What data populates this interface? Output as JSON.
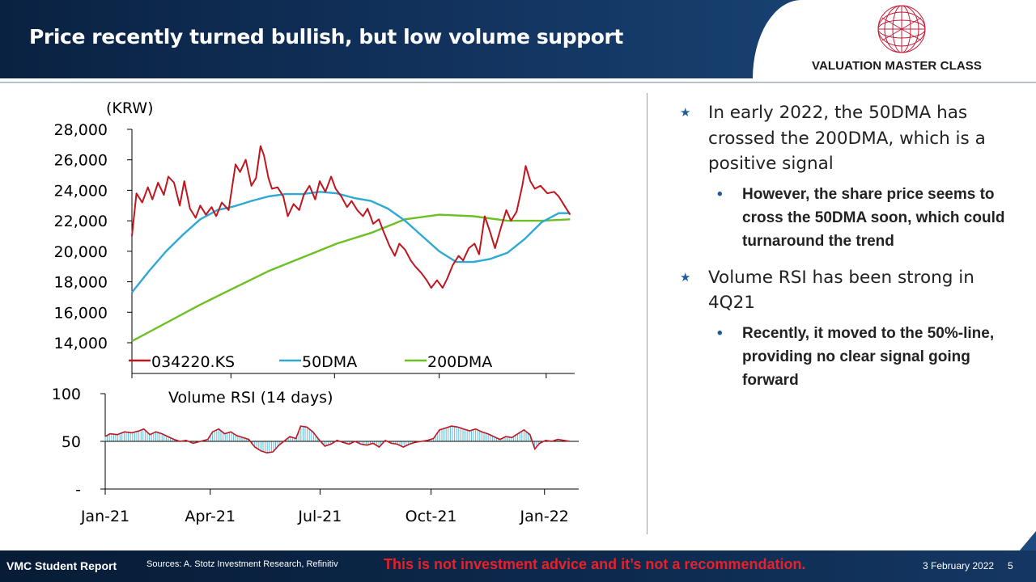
{
  "header": {
    "title": "Price recently turned bullish, but low volume support"
  },
  "logo": {
    "text": "VALUATION MASTER CLASS"
  },
  "chart_data": [
    {
      "type": "line",
      "ylabel": "(KRW)",
      "ylim": [
        14000,
        28000
      ],
      "yticks": [
        "28,000",
        "26,000",
        "24,000",
        "22,000",
        "20,000",
        "18,000",
        "16,000",
        "14,000"
      ],
      "x_range": [
        "2021-01-04",
        "2022-01-28"
      ],
      "legend_position": "bottom",
      "grid": false,
      "series": [
        {
          "name": "034220.KS",
          "color": "#c0161f",
          "points": [
            [
              "2021-01-04",
              21000
            ],
            [
              "2021-01-08",
              23800
            ],
            [
              "2021-01-13",
              23200
            ],
            [
              "2021-01-18",
              24200
            ],
            [
              "2021-01-22",
              23400
            ],
            [
              "2021-01-27",
              24500
            ],
            [
              "2021-02-01",
              23700
            ],
            [
              "2021-02-05",
              24900
            ],
            [
              "2021-02-10",
              24500
            ],
            [
              "2021-02-15",
              23000
            ],
            [
              "2021-02-19",
              24600
            ],
            [
              "2021-02-24",
              22800
            ],
            [
              "2021-03-01",
              22200
            ],
            [
              "2021-03-05",
              23000
            ],
            [
              "2021-03-10",
              22400
            ],
            [
              "2021-03-15",
              22900
            ],
            [
              "2021-03-19",
              22300
            ],
            [
              "2021-03-24",
              23200
            ],
            [
              "2021-03-30",
              22700
            ],
            [
              "2021-04-05",
              25700
            ],
            [
              "2021-04-09",
              25200
            ],
            [
              "2021-04-14",
              26000
            ],
            [
              "2021-04-19",
              24300
            ],
            [
              "2021-04-23",
              24800
            ],
            [
              "2021-04-27",
              26900
            ],
            [
              "2021-04-30",
              26300
            ],
            [
              "2021-05-04",
              24800
            ],
            [
              "2021-05-07",
              24100
            ],
            [
              "2021-05-12",
              24200
            ],
            [
              "2021-05-17",
              23600
            ],
            [
              "2021-05-21",
              22300
            ],
            [
              "2021-05-26",
              23100
            ],
            [
              "2021-05-31",
              22700
            ],
            [
              "2021-06-04",
              23700
            ],
            [
              "2021-06-09",
              24300
            ],
            [
              "2021-06-14",
              23400
            ],
            [
              "2021-06-18",
              24600
            ],
            [
              "2021-06-23",
              23900
            ],
            [
              "2021-06-28",
              24900
            ],
            [
              "2021-07-02",
              24100
            ],
            [
              "2021-07-07",
              23600
            ],
            [
              "2021-07-12",
              22900
            ],
            [
              "2021-07-16",
              23300
            ],
            [
              "2021-07-21",
              22700
            ],
            [
              "2021-07-26",
              22300
            ],
            [
              "2021-07-30",
              22800
            ],
            [
              "2021-08-04",
              21800
            ],
            [
              "2021-08-09",
              22100
            ],
            [
              "2021-08-13",
              21300
            ],
            [
              "2021-08-18",
              20400
            ],
            [
              "2021-08-23",
              19700
            ],
            [
              "2021-08-27",
              20500
            ],
            [
              "2021-09-01",
              20100
            ],
            [
              "2021-09-06",
              19400
            ],
            [
              "2021-09-10",
              19000
            ],
            [
              "2021-09-15",
              18600
            ],
            [
              "2021-09-20",
              18100
            ],
            [
              "2021-09-24",
              17600
            ],
            [
              "2021-09-29",
              18100
            ],
            [
              "2021-10-04",
              17600
            ],
            [
              "2021-10-08",
              18200
            ],
            [
              "2021-10-13",
              19100
            ],
            [
              "2021-10-18",
              19700
            ],
            [
              "2021-10-22",
              19400
            ],
            [
              "2021-10-27",
              20200
            ],
            [
              "2021-11-01",
              20500
            ],
            [
              "2021-11-05",
              19800
            ],
            [
              "2021-11-10",
              22300
            ],
            [
              "2021-11-15",
              21200
            ],
            [
              "2021-11-19",
              20200
            ],
            [
              "2021-11-24",
              21500
            ],
            [
              "2021-11-29",
              22700
            ],
            [
              "2021-12-03",
              22000
            ],
            [
              "2021-12-08",
              22600
            ],
            [
              "2021-12-13",
              24300
            ],
            [
              "2021-12-16",
              25600
            ],
            [
              "2021-12-20",
              24600
            ],
            [
              "2021-12-24",
              24100
            ],
            [
              "2021-12-29",
              24300
            ],
            [
              "2022-01-04",
              23800
            ],
            [
              "2022-01-10",
              23900
            ],
            [
              "2022-01-14",
              23600
            ],
            [
              "2022-01-19",
              23000
            ],
            [
              "2022-01-24",
              22400
            ]
          ]
        },
        {
          "name": "50DMA",
          "color": "#2ea8d5",
          "points": [
            [
              "2021-01-04",
              17300
            ],
            [
              "2021-01-19",
              18700
            ],
            [
              "2021-02-03",
              20000
            ],
            [
              "2021-02-18",
              21100
            ],
            [
              "2021-03-05",
              22100
            ],
            [
              "2021-03-20",
              22700
            ],
            [
              "2021-04-04",
              22950
            ],
            [
              "2021-04-19",
              23300
            ],
            [
              "2021-05-04",
              23600
            ],
            [
              "2021-05-19",
              23750
            ],
            [
              "2021-06-03",
              23750
            ],
            [
              "2021-06-18",
              23900
            ],
            [
              "2021-07-03",
              23800
            ],
            [
              "2021-07-18",
              23500
            ],
            [
              "2021-08-02",
              23300
            ],
            [
              "2021-08-17",
              22800
            ],
            [
              "2021-09-01",
              22000
            ],
            [
              "2021-09-16",
              21000
            ],
            [
              "2021-10-01",
              20000
            ],
            [
              "2021-10-16",
              19300
            ],
            [
              "2021-10-31",
              19300
            ],
            [
              "2021-11-15",
              19500
            ],
            [
              "2021-11-30",
              19900
            ],
            [
              "2021-12-15",
              20800
            ],
            [
              "2021-12-30",
              21900
            ],
            [
              "2022-01-14",
              22500
            ],
            [
              "2022-01-24",
              22500
            ]
          ]
        },
        {
          "name": "200DMA",
          "color": "#6cbf25",
          "points": [
            [
              "2021-01-04",
              14100
            ],
            [
              "2021-02-03",
              15300
            ],
            [
              "2021-03-05",
              16500
            ],
            [
              "2021-04-04",
              17600
            ],
            [
              "2021-05-04",
              18700
            ],
            [
              "2021-06-03",
              19600
            ],
            [
              "2021-07-03",
              20500
            ],
            [
              "2021-08-02",
              21200
            ],
            [
              "2021-09-01",
              22100
            ],
            [
              "2021-10-01",
              22400
            ],
            [
              "2021-10-31",
              22300
            ],
            [
              "2021-11-30",
              22000
            ],
            [
              "2021-12-30",
              22000
            ],
            [
              "2022-01-24",
              22100
            ]
          ]
        }
      ]
    },
    {
      "type": "area",
      "title": "Volume RSI (14 days)",
      "ylim": [
        0,
        100
      ],
      "yticks": [
        "100",
        "50",
        "-"
      ],
      "baseline": 50,
      "xticks": [
        "Jan-21",
        "Apr-21",
        "Jul-21",
        "Oct-21",
        "Jan-22"
      ],
      "xtick_dates": [
        "2021-01-04",
        "2021-04-01",
        "2021-07-01",
        "2021-10-01",
        "2022-01-03"
      ],
      "x_range": [
        "2021-01-04",
        "2022-01-28"
      ],
      "colors": {
        "line": "#c0161f",
        "fill": "#5bbde0"
      },
      "points": [
        [
          "2021-01-04",
          55
        ],
        [
          "2021-01-08",
          58
        ],
        [
          "2021-01-14",
          57
        ],
        [
          "2021-01-20",
          60
        ],
        [
          "2021-01-26",
          59
        ],
        [
          "2021-02-01",
          61
        ],
        [
          "2021-02-05",
          63
        ],
        [
          "2021-02-10",
          57
        ],
        [
          "2021-02-15",
          60
        ],
        [
          "2021-02-20",
          58
        ],
        [
          "2021-02-25",
          55
        ],
        [
          "2021-03-02",
          52
        ],
        [
          "2021-03-07",
          50
        ],
        [
          "2021-03-12",
          51
        ],
        [
          "2021-03-18",
          48
        ],
        [
          "2021-03-24",
          50
        ],
        [
          "2021-03-30",
          52
        ],
        [
          "2021-04-03",
          60
        ],
        [
          "2021-04-08",
          63
        ],
        [
          "2021-04-13",
          58
        ],
        [
          "2021-04-18",
          60
        ],
        [
          "2021-04-23",
          56
        ],
        [
          "2021-04-28",
          54
        ],
        [
          "2021-05-03",
          52
        ],
        [
          "2021-05-08",
          44
        ],
        [
          "2021-05-13",
          40
        ],
        [
          "2021-05-18",
          38
        ],
        [
          "2021-05-23",
          39
        ],
        [
          "2021-05-28",
          46
        ],
        [
          "2021-06-02",
          51
        ],
        [
          "2021-06-06",
          55
        ],
        [
          "2021-06-11",
          53
        ],
        [
          "2021-06-15",
          66
        ],
        [
          "2021-06-20",
          65
        ],
        [
          "2021-06-25",
          60
        ],
        [
          "2021-06-30",
          52
        ],
        [
          "2021-07-05",
          45
        ],
        [
          "2021-07-10",
          47
        ],
        [
          "2021-07-15",
          51
        ],
        [
          "2021-07-20",
          49
        ],
        [
          "2021-07-25",
          47
        ],
        [
          "2021-07-30",
          50
        ],
        [
          "2021-08-04",
          47
        ],
        [
          "2021-08-09",
          46
        ],
        [
          "2021-08-14",
          48
        ],
        [
          "2021-08-19",
          44
        ],
        [
          "2021-08-24",
          51
        ],
        [
          "2021-08-29",
          48
        ],
        [
          "2021-09-03",
          47
        ],
        [
          "2021-09-08",
          44
        ],
        [
          "2021-09-13",
          47
        ],
        [
          "2021-09-18",
          49
        ],
        [
          "2021-09-23",
          50
        ],
        [
          "2021-09-28",
          51
        ],
        [
          "2021-10-03",
          53
        ],
        [
          "2021-10-08",
          62
        ],
        [
          "2021-10-13",
          64
        ],
        [
          "2021-10-18",
          66
        ],
        [
          "2021-10-23",
          65
        ],
        [
          "2021-10-28",
          63
        ],
        [
          "2021-11-02",
          61
        ],
        [
          "2021-11-07",
          63
        ],
        [
          "2021-11-12",
          60
        ],
        [
          "2021-11-17",
          58
        ],
        [
          "2021-11-22",
          55
        ],
        [
          "2021-11-27",
          52
        ],
        [
          "2021-12-02",
          55
        ],
        [
          "2021-12-07",
          54
        ],
        [
          "2021-12-12",
          58
        ],
        [
          "2021-12-17",
          62
        ],
        [
          "2021-12-22",
          57
        ],
        [
          "2021-12-26",
          42
        ],
        [
          "2021-12-30",
          48
        ],
        [
          "2022-01-04",
          51
        ],
        [
          "2022-01-09",
          50
        ],
        [
          "2022-01-14",
          52
        ],
        [
          "2022-01-19",
          51
        ],
        [
          "2022-01-24",
          50
        ]
      ]
    }
  ],
  "bullets": [
    {
      "text": "In early 2022, the 50DMA has crossed the 200DMA, which is a positive signal",
      "sub": "However, the share price seems to cross the 50DMA soon, which could turnaround the trend"
    },
    {
      "text": "Volume RSI has been strong in 4Q21",
      "sub": "Recently, it moved to the 50%-line, providing no clear signal going forward"
    }
  ],
  "footer": {
    "brand": "VMC Student Report",
    "source": "Sources: A. Stotz Investment Research, Refinitiv",
    "disclaimer": "This is not investment advice and it’s not a recommendation.",
    "date": "3 February 2022",
    "page": "5"
  }
}
